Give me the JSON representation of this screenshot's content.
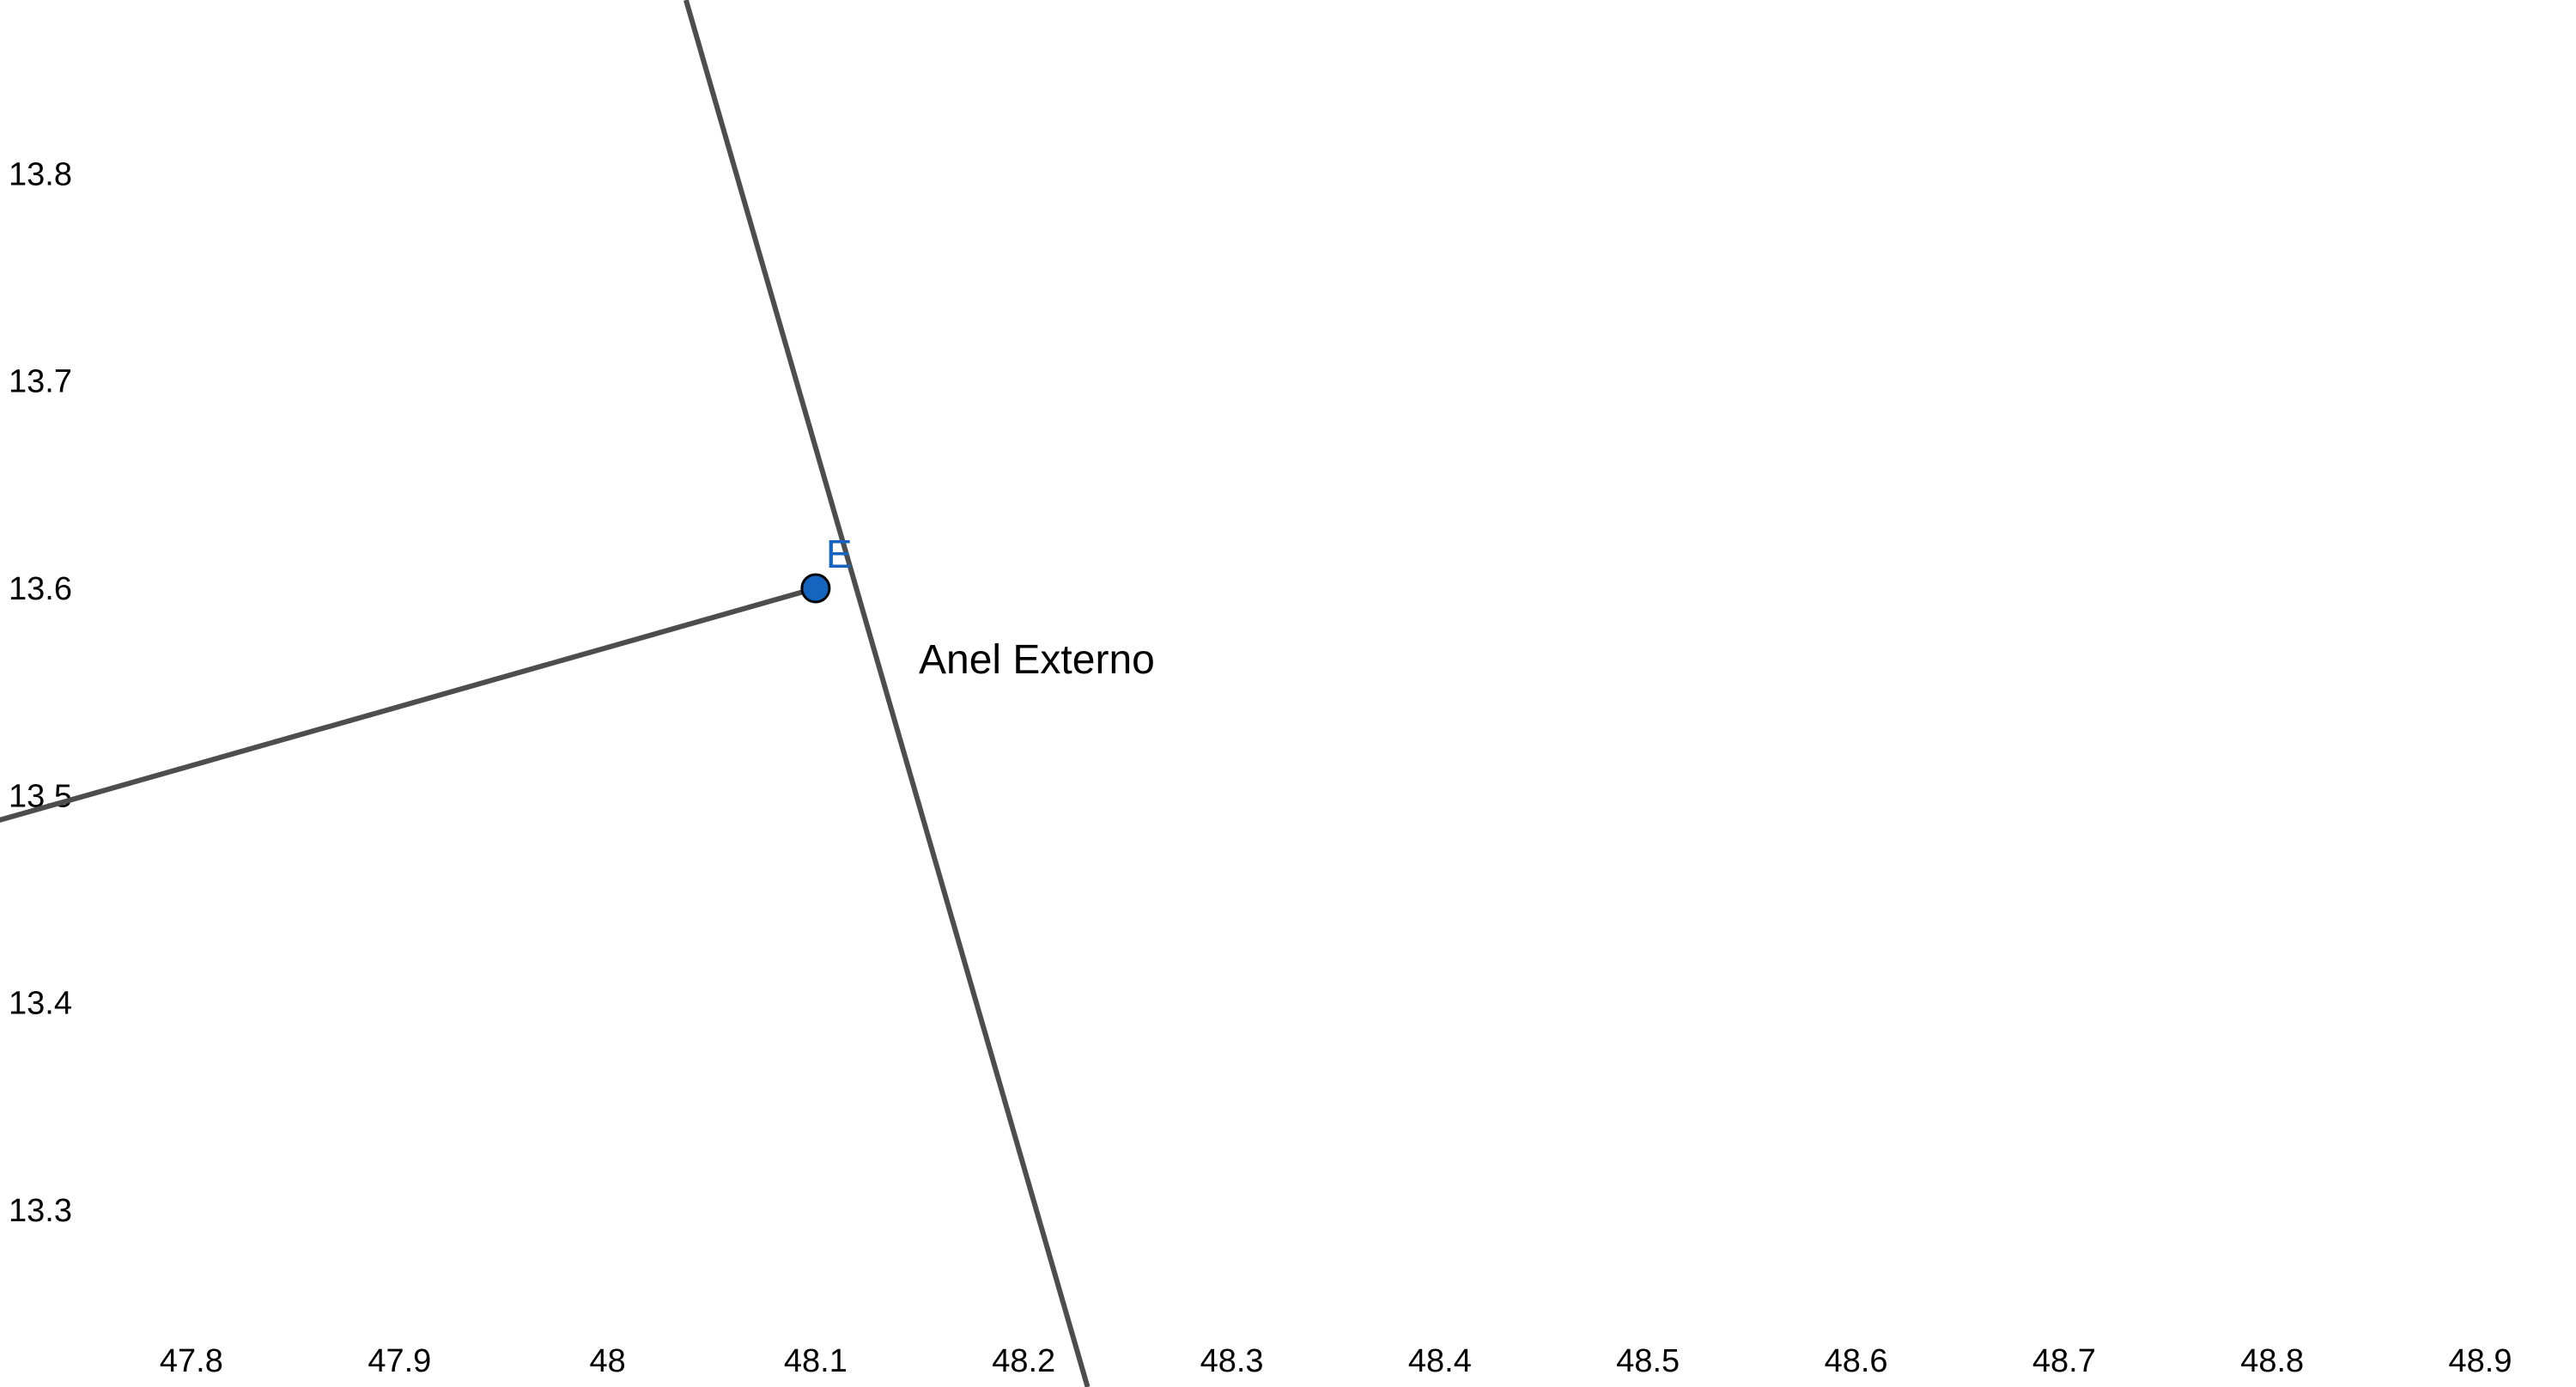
{
  "graphics_view": {
    "x_axis": {
      "range": [
        47.708,
        48.946
      ],
      "tick_labels": [
        "47.8",
        "47.9",
        "48",
        "48.1",
        "48.2",
        "48.3",
        "48.4",
        "48.5",
        "48.6",
        "48.7",
        "48.8",
        "48.9"
      ],
      "tick_values": [
        47.8,
        47.9,
        48.0,
        48.1,
        48.2,
        48.3,
        48.4,
        48.5,
        48.6,
        48.7,
        48.8,
        48.9
      ]
    },
    "y_axis": {
      "range": [
        13.2146,
        13.8839
      ],
      "tick_labels": [
        "13.8",
        "13.7",
        "13.6",
        "13.5",
        "13.4",
        "13.3"
      ],
      "tick_values": [
        13.8,
        13.7,
        13.6,
        13.5,
        13.4,
        13.3
      ]
    },
    "line_color": "#4d4d4d",
    "point_color": "#1565c0",
    "segments": [
      {
        "name": "steep-segment",
        "from": [
          48.0377,
          13.8839
        ],
        "to": [
          48.2307,
          13.2146
        ]
      },
      {
        "name": "shallow-segment",
        "from": [
          47.708,
          13.4882
        ],
        "to": [
          48.1,
          13.6
        ]
      }
    ],
    "points": [
      {
        "label": "E",
        "x": 48.1,
        "y": 13.6
      }
    ],
    "text_label": "Anel Externo"
  }
}
